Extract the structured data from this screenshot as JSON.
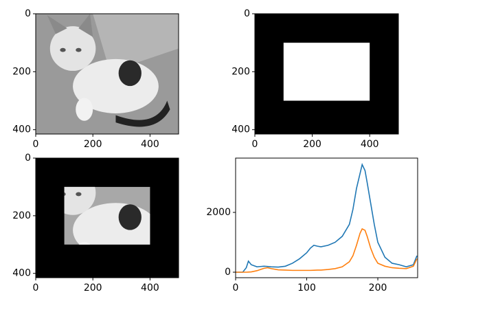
{
  "chart_data": [
    {
      "type": "image",
      "xlim": [
        0,
        500
      ],
      "ylim": [
        415,
        0
      ],
      "xticks": [
        0,
        200,
        400
      ],
      "yticks": [
        0,
        200,
        400
      ]
    },
    {
      "type": "mask",
      "xlim": [
        0,
        500
      ],
      "ylim": [
        415,
        0
      ],
      "xticks": [
        0,
        200,
        400
      ],
      "yticks": [
        0,
        200,
        400
      ],
      "rect_x": [
        100,
        400
      ],
      "rect_y": [
        100,
        300
      ]
    },
    {
      "type": "masked_image",
      "xlim": [
        0,
        500
      ],
      "ylim": [
        415,
        0
      ],
      "xticks": [
        0,
        200,
        400
      ],
      "yticks": [
        0,
        200,
        400
      ],
      "rect_x": [
        100,
        400
      ],
      "rect_y": [
        100,
        300
      ]
    },
    {
      "type": "line",
      "xlim": [
        0,
        256
      ],
      "ylim": [
        -184,
        3816
      ],
      "xticks": [
        0,
        100,
        200
      ],
      "yticks": [
        0,
        2000
      ],
      "x": [
        0,
        10,
        15,
        18,
        22,
        30,
        40,
        45,
        50,
        60,
        70,
        80,
        90,
        100,
        105,
        110,
        115,
        120,
        130,
        140,
        150,
        160,
        165,
        170,
        175,
        178,
        182,
        185,
        190,
        195,
        200,
        210,
        220,
        230,
        240,
        250,
        255
      ],
      "series": [
        {
          "color": "#1f77b4",
          "values": [
            0,
            0,
            150,
            370,
            250,
            180,
            200,
            190,
            180,
            170,
            200,
            300,
            450,
            650,
            800,
            900,
            870,
            850,
            900,
            1000,
            1200,
            1600,
            2100,
            2800,
            3300,
            3600,
            3400,
            3000,
            2300,
            1600,
            1000,
            500,
            300,
            250,
            180,
            250,
            550
          ]
        },
        {
          "color": "#ff7f0e",
          "values": [
            0,
            0,
            0,
            5,
            10,
            50,
            130,
            150,
            120,
            80,
            70,
            60,
            60,
            60,
            60,
            65,
            70,
            70,
            90,
            120,
            180,
            350,
            550,
            900,
            1300,
            1450,
            1400,
            1200,
            800,
            500,
            300,
            200,
            150,
            130,
            120,
            200,
            450
          ]
        }
      ]
    }
  ]
}
